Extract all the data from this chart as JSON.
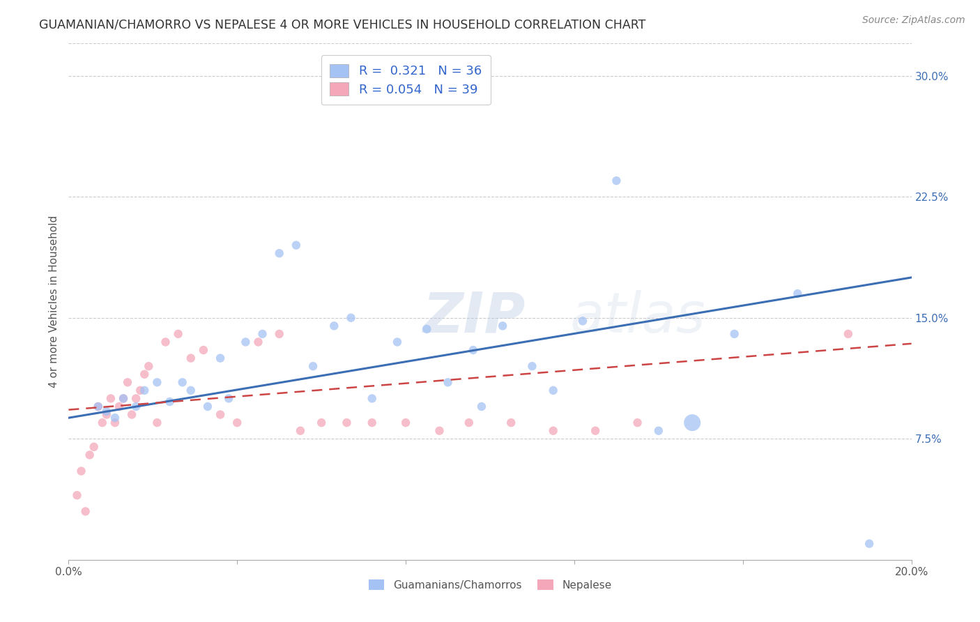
{
  "title": "GUAMANIAN/CHAMORRO VS NEPALESE 4 OR MORE VEHICLES IN HOUSEHOLD CORRELATION CHART",
  "source": "Source: ZipAtlas.com",
  "ylabel": "4 or more Vehicles in Household",
  "xlim": [
    0,
    0.2
  ],
  "ylim": [
    0,
    0.32
  ],
  "xticks": [
    0.0,
    0.04,
    0.08,
    0.12,
    0.16,
    0.2
  ],
  "xtick_labels": [
    "0.0%",
    "",
    "",
    "",
    "",
    "20.0%"
  ],
  "yticks_right": [
    0.0,
    0.075,
    0.15,
    0.225,
    0.3
  ],
  "ytick_labels_right": [
    "",
    "7.5%",
    "15.0%",
    "22.5%",
    "30.0%"
  ],
  "blue_R": 0.321,
  "blue_N": 36,
  "pink_R": 0.054,
  "pink_N": 39,
  "blue_color": "#a4c2f4",
  "pink_color": "#f4a7b9",
  "blue_line_color": "#3c6eb4",
  "pink_line_color": "#cc4444",
  "legend_label_blue": "Guamanians/Chamorros",
  "legend_label_pink": "Nepalese",
  "watermark": "ZIPatlas",
  "blue_scatter_x": [
    0.007,
    0.009,
    0.011,
    0.013,
    0.016,
    0.018,
    0.021,
    0.024,
    0.027,
    0.029,
    0.033,
    0.036,
    0.038,
    0.042,
    0.046,
    0.05,
    0.054,
    0.058,
    0.063,
    0.067,
    0.072,
    0.078,
    0.085,
    0.09,
    0.096,
    0.098,
    0.103,
    0.11,
    0.115,
    0.122,
    0.13,
    0.14,
    0.148,
    0.158,
    0.173,
    0.19
  ],
  "blue_scatter_y": [
    0.095,
    0.092,
    0.088,
    0.1,
    0.095,
    0.105,
    0.11,
    0.098,
    0.11,
    0.105,
    0.095,
    0.125,
    0.1,
    0.135,
    0.14,
    0.19,
    0.195,
    0.12,
    0.145,
    0.15,
    0.1,
    0.135,
    0.143,
    0.11,
    0.13,
    0.095,
    0.145,
    0.12,
    0.105,
    0.148,
    0.235,
    0.08,
    0.085,
    0.14,
    0.165,
    0.01
  ],
  "blue_scatter_size": [
    80,
    80,
    80,
    80,
    80,
    80,
    80,
    80,
    80,
    80,
    80,
    80,
    80,
    80,
    80,
    80,
    80,
    80,
    80,
    80,
    80,
    80,
    80,
    80,
    80,
    80,
    80,
    80,
    80,
    80,
    80,
    80,
    300,
    80,
    80,
    80
  ],
  "pink_scatter_x": [
    0.002,
    0.003,
    0.004,
    0.005,
    0.006,
    0.007,
    0.008,
    0.009,
    0.01,
    0.011,
    0.012,
    0.013,
    0.014,
    0.015,
    0.016,
    0.017,
    0.018,
    0.019,
    0.021,
    0.023,
    0.026,
    0.029,
    0.032,
    0.036,
    0.04,
    0.045,
    0.05,
    0.055,
    0.06,
    0.066,
    0.072,
    0.08,
    0.088,
    0.095,
    0.105,
    0.115,
    0.125,
    0.135,
    0.185
  ],
  "pink_scatter_y": [
    0.04,
    0.055,
    0.03,
    0.065,
    0.07,
    0.095,
    0.085,
    0.09,
    0.1,
    0.085,
    0.095,
    0.1,
    0.11,
    0.09,
    0.1,
    0.105,
    0.115,
    0.12,
    0.085,
    0.135,
    0.14,
    0.125,
    0.13,
    0.09,
    0.085,
    0.135,
    0.14,
    0.08,
    0.085,
    0.085,
    0.085,
    0.085,
    0.08,
    0.085,
    0.085,
    0.08,
    0.08,
    0.085,
    0.14
  ],
  "pink_scatter_size": [
    80,
    80,
    80,
    80,
    80,
    80,
    80,
    80,
    80,
    80,
    80,
    80,
    80,
    80,
    80,
    80,
    80,
    80,
    80,
    80,
    80,
    80,
    80,
    80,
    80,
    80,
    80,
    80,
    80,
    80,
    80,
    80,
    80,
    80,
    80,
    80,
    80,
    80,
    80
  ],
  "blue_line_x0": 0.0,
  "blue_line_y0": 0.088,
  "blue_line_x1": 0.2,
  "blue_line_y1": 0.175,
  "pink_line_x0": 0.0,
  "pink_line_y0": 0.093,
  "pink_line_x1": 0.2,
  "pink_line_y1": 0.134
}
